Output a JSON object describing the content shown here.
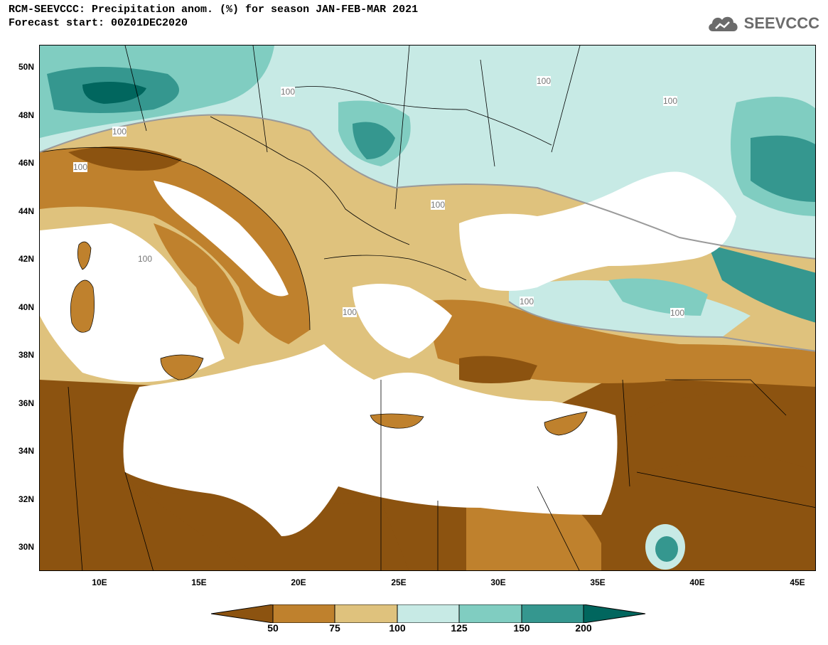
{
  "header": {
    "title_line1": "RCM-SEEVCCC: Precipitation anom. (%) for season JAN-FEB-MAR 2021",
    "title_line2": "Forecast start: 00Z01DEC2020",
    "logo_text": "SEEVCCC"
  },
  "map": {
    "lat_labels": [
      "50N",
      "48N",
      "46N",
      "44N",
      "42N",
      "40N",
      "38N",
      "36N",
      "34N",
      "32N",
      "30N"
    ],
    "lon_labels": [
      "10E",
      "15E",
      "20E",
      "25E",
      "30E",
      "35E",
      "40E",
      "45E"
    ],
    "contour_labels": [
      "100",
      "100",
      "100",
      "100",
      "100",
      "100",
      "100",
      "100",
      "100",
      "100"
    ],
    "palette": {
      "lt50": "#8c5310",
      "50_75": "#bf812d",
      "75_100": "#dfc27d",
      "100_125": "#c7eae5",
      "125_150": "#80cdc1",
      "150_200": "#35978f",
      "gt200": "#01665e",
      "water": "#ffffff",
      "borders": "#000000",
      "contour": "#9a9a9a"
    }
  },
  "legend": {
    "labels": [
      "50",
      "75",
      "100",
      "125",
      "150",
      "200"
    ]
  }
}
